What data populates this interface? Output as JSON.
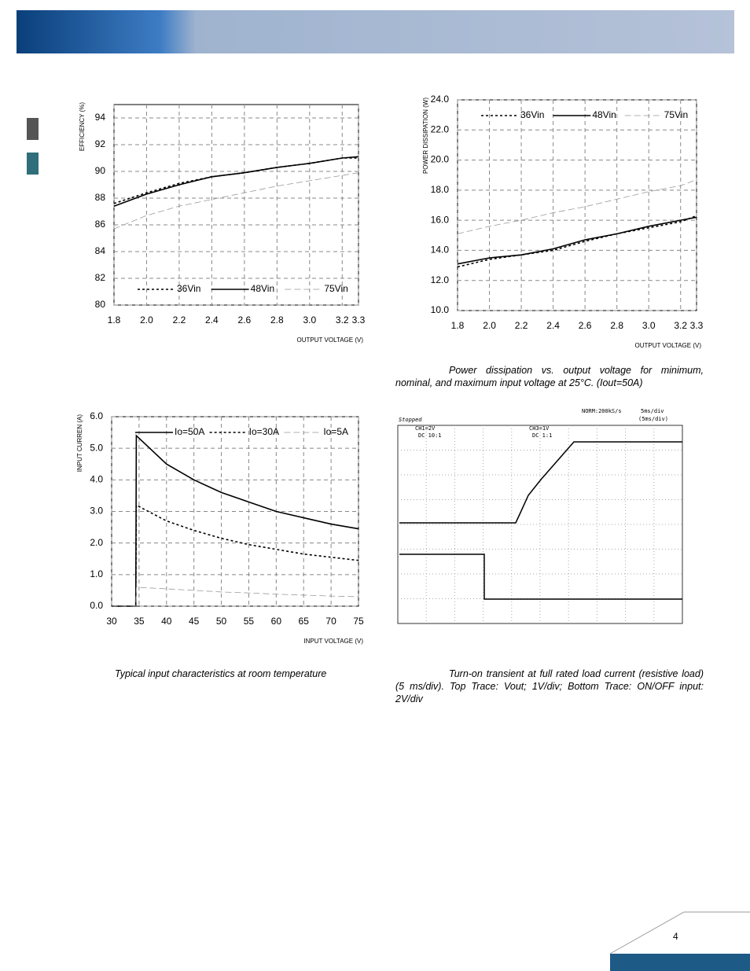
{
  "chart_data": [
    {
      "type": "line",
      "ylabel": "EFFICIENCY (%)",
      "xlabel": "OUTPUT VOLTAGE (V)",
      "x": [
        1.8,
        2.0,
        2.2,
        2.4,
        2.6,
        2.8,
        3.0,
        3.2,
        3.3
      ],
      "series": [
        {
          "name": "36Vin",
          "color": "#000000",
          "dash": "dotted",
          "values": [
            87.6,
            88.4,
            89.1,
            89.6,
            89.9,
            90.3,
            90.6,
            91.0,
            91.0
          ]
        },
        {
          "name": "48Vin",
          "color": "#000000",
          "dash": "solid",
          "values": [
            87.4,
            88.3,
            89.0,
            89.6,
            89.9,
            90.3,
            90.6,
            91.0,
            91.1
          ]
        },
        {
          "name": "75Vin",
          "color": "#999999",
          "dash": "dashed",
          "values": [
            85.7,
            86.7,
            87.4,
            87.9,
            88.4,
            88.9,
            89.3,
            89.7,
            89.9
          ]
        }
      ],
      "xlim": [
        1.8,
        3.3
      ],
      "xticks": [
        1.8,
        {
          "value": 2,
          "label": "2.0"
        },
        2.2,
        2.4,
        2.6,
        2.8,
        {
          "value": 3,
          "label": "3.0"
        },
        3.2,
        3.3
      ],
      "ylim": [
        80,
        95
      ],
      "yticks": [
        80,
        82,
        84,
        86,
        88,
        90,
        92,
        94
      ],
      "grid": true,
      "legend": "lower center"
    },
    {
      "type": "line",
      "ylabel": "POWER DISSIPATION (W)",
      "xlabel": "OUTPUT VOLTAGE (V)",
      "x": [
        1.8,
        2.0,
        2.2,
        2.4,
        2.6,
        2.8,
        3.0,
        3.2,
        3.3
      ],
      "series": [
        {
          "name": "36Vin",
          "color": "#000000",
          "dash": "dotted",
          "values": [
            12.9,
            13.4,
            13.7,
            14.0,
            14.6,
            15.1,
            15.5,
            15.9,
            16.3
          ]
        },
        {
          "name": "48Vin",
          "color": "#000000",
          "dash": "solid",
          "values": [
            13.1,
            13.5,
            13.7,
            14.1,
            14.7,
            15.1,
            15.6,
            16.0,
            16.2
          ]
        },
        {
          "name": "75Vin",
          "color": "#999999",
          "dash": "dashed",
          "values": [
            15.1,
            15.6,
            16.0,
            16.5,
            16.9,
            17.4,
            17.9,
            18.3,
            18.7
          ]
        }
      ],
      "xlim": [
        1.8,
        3.3
      ],
      "xticks": [
        1.8,
        {
          "value": 2,
          "label": "2.0"
        },
        2.2,
        2.4,
        2.6,
        2.8,
        {
          "value": 3,
          "label": "3.0"
        },
        3.2,
        3.3
      ],
      "ylim": [
        10,
        24
      ],
      "yticks": [
        {
          "value": 10,
          "label": "10.0"
        },
        {
          "value": 12,
          "label": "12.0"
        },
        {
          "value": 14,
          "label": "14.0"
        },
        {
          "value": 16,
          "label": "16.0"
        },
        {
          "value": 18,
          "label": "18.0"
        },
        {
          "value": 20,
          "label": "20.0"
        },
        {
          "value": 22,
          "label": "22.0"
        },
        {
          "value": 24,
          "label": "24.0"
        }
      ],
      "grid": true,
      "legend": "upper center"
    },
    {
      "type": "line",
      "ylabel": "INPUT CURREN (A)",
      "xlabel": "INPUT VOLTAGE (V)",
      "x": [
        30,
        34.4,
        34.5,
        40,
        45,
        50,
        55,
        60,
        65,
        70,
        75
      ],
      "series": [
        {
          "name": "Io=50A",
          "color": "#000000",
          "dash": "solid",
          "values": [
            0,
            0,
            5.4,
            4.5,
            4.0,
            3.6,
            3.3,
            3.0,
            2.8,
            2.6,
            2.45
          ]
        },
        {
          "name": "Io=30A",
          "color": "#000000",
          "dash": "dotted",
          "values": [
            0,
            0,
            3.2,
            2.7,
            2.4,
            2.15,
            1.95,
            1.8,
            1.65,
            1.55,
            1.45
          ]
        },
        {
          "name": "Io=5A",
          "color": "#999999",
          "dash": "dashed",
          "values": [
            0,
            0,
            0.6,
            0.55,
            0.5,
            0.45,
            0.42,
            0.38,
            0.35,
            0.32,
            0.3
          ]
        }
      ],
      "xlim": [
        30,
        75
      ],
      "xticks": [
        30,
        35,
        40,
        45,
        50,
        55,
        60,
        65,
        70,
        75
      ],
      "ylim": [
        0,
        6
      ],
      "yticks": [
        {
          "value": 0,
          "label": "0.0"
        },
        {
          "value": 1,
          "label": "1.0"
        },
        {
          "value": 2,
          "label": "2.0"
        },
        {
          "value": 3,
          "label": "3.0"
        },
        {
          "value": 4,
          "label": "4.0"
        },
        {
          "value": 5,
          "label": "5.0"
        },
        {
          "value": 6,
          "label": "6.0"
        }
      ],
      "grid": true,
      "legend": "upper center"
    }
  ],
  "scope": {
    "status": "Stopped",
    "rate": "NORM:200kS/s",
    "timebase": "5ms/div",
    "timebase2": "(5ms/div)",
    "ch1": "CH1=2V",
    "ch1_coupling": "DC 10:1",
    "ch3": "CH3=1V",
    "ch3_coupling": "DC 1:1"
  },
  "captions": {
    "power": "Power dissipation vs. output voltage for minimum, nominal, and maximum input voltage at 25°C. (Iout=50A)",
    "input": "Typical input characteristics at room temperature",
    "turn_on": "Turn-on transient at full rated load current (resistive load) (5 ms/div). Top Trace: Vout; 1V/div; Bottom Trace: ON/OFF input: 2V/div"
  },
  "page_number": "4"
}
